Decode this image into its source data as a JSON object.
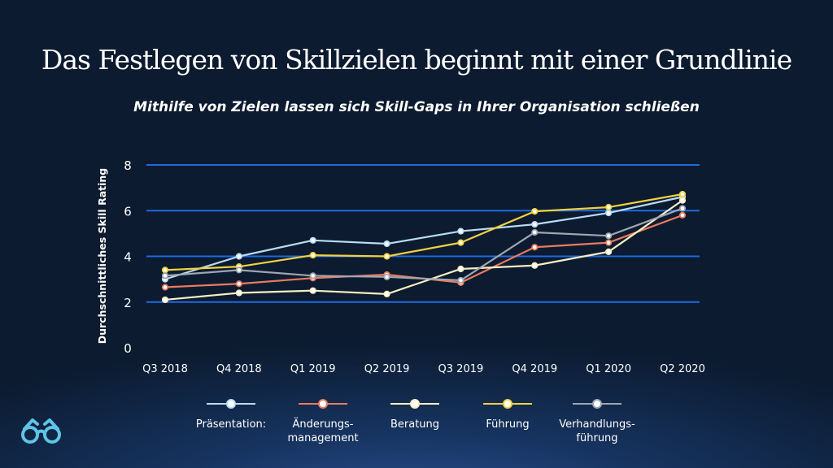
{
  "slide": {
    "title": "Das Festlegen von Skillzielen beginnt mit einer Grundlinie",
    "subtitle": "Mithilfe von Zielen lassen sich Skill-Gaps in Ihrer Organisation schließen"
  },
  "logo": {
    "icon": "glasses-icon",
    "color": "#5fc4e8"
  },
  "chart_data": {
    "type": "line",
    "title": "",
    "xlabel": "",
    "ylabel": "Durchschnittliches Skill Rating",
    "categories": [
      "Q3 2018",
      "Q4 2018",
      "Q1 2019",
      "Q2 2019",
      "Q3 2019",
      "Q4 2019",
      "Q1 2020",
      "Q2 2020"
    ],
    "yticks": [
      "0",
      "2",
      "4",
      "6",
      "8"
    ],
    "ylim": [
      0,
      8
    ],
    "grid": "horizontal",
    "legend_position": "bottom",
    "series": [
      {
        "name": "Präsentation:",
        "color": "#b7dcf2",
        "values": [
          3.0,
          4.0,
          4.7,
          4.55,
          5.1,
          5.4,
          5.9,
          6.6
        ]
      },
      {
        "name": "Änderungs-\nmanagement",
        "color": "#ec7a5e",
        "values": [
          2.65,
          2.8,
          3.05,
          3.2,
          2.85,
          4.4,
          4.6,
          5.8
        ]
      },
      {
        "name": "Beratung",
        "color": "#f6efc2",
        "values": [
          2.1,
          2.4,
          2.5,
          2.35,
          3.45,
          3.6,
          4.2,
          6.45
        ]
      },
      {
        "name": "Führung",
        "color": "#f2d13e",
        "values": [
          3.4,
          3.55,
          4.05,
          4.0,
          4.6,
          5.97,
          6.15,
          6.72
        ]
      },
      {
        "name": "Verhandlungs-\nführung",
        "color": "#9fa6b0",
        "values": [
          3.15,
          3.4,
          3.15,
          3.1,
          2.95,
          5.05,
          4.9,
          6.1
        ]
      }
    ]
  }
}
